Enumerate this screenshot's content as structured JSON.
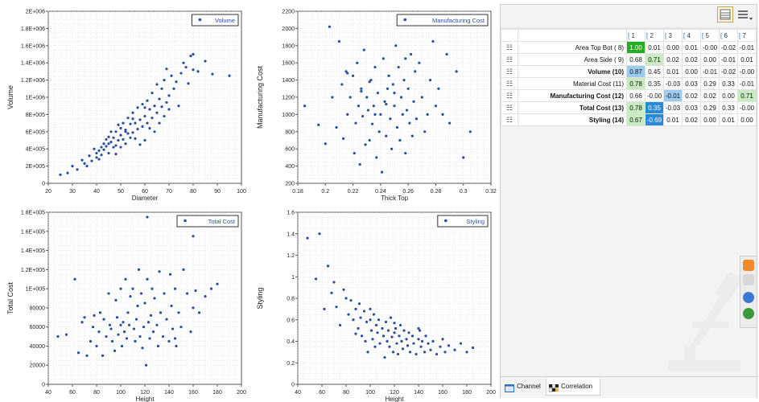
{
  "chart_data": [
    {
      "type": "scatter",
      "title": "",
      "xlabel": "Diameter",
      "ylabel": "Volume",
      "legend": "Volume",
      "legend_position": "top-right",
      "grid": true,
      "xlim": [
        20,
        100
      ],
      "ylim": [
        0,
        2000000
      ],
      "xticks": [
        "20",
        "30",
        "40",
        "50",
        "60",
        "70",
        "80",
        "90",
        "100"
      ],
      "yticks": [
        "0",
        "2E+005",
        "4E+005",
        "6E+005",
        "8E+005",
        "1E+006",
        "1.2E+006",
        "1.4E+006",
        "1.6E+006",
        "1.8E+006",
        "2E+006"
      ],
      "color": "#2a4d9e",
      "x": [
        25,
        28,
        30,
        32,
        34,
        35,
        36,
        37,
        38,
        39,
        40,
        40,
        41,
        41,
        42,
        42,
        43,
        43,
        44,
        44,
        45,
        45,
        45,
        46,
        46,
        47,
        47,
        48,
        48,
        49,
        49,
        50,
        50,
        50,
        51,
        51,
        52,
        52,
        53,
        53,
        54,
        54,
        55,
        55,
        56,
        56,
        57,
        57,
        58,
        58,
        59,
        59,
        60,
        60,
        61,
        61,
        62,
        62,
        63,
        63,
        64,
        64,
        65,
        65,
        66,
        66,
        67,
        67,
        68,
        68,
        69,
        69,
        70,
        70,
        71,
        72,
        73,
        74,
        75,
        76,
        77,
        78,
        79,
        80,
        80,
        82,
        85,
        88,
        95,
        60,
        55,
        52,
        48
      ],
      "y": [
        100000,
        120000,
        200000,
        160000,
        270000,
        230000,
        200000,
        320000,
        260000,
        400000,
        300000,
        350000,
        380000,
        280000,
        420000,
        330000,
        460000,
        390000,
        510000,
        430000,
        350000,
        460000,
        540000,
        480000,
        600000,
        420000,
        530000,
        440000,
        600000,
        500000,
        680000,
        420000,
        560000,
        640000,
        510000,
        700000,
        460000,
        620000,
        580000,
        760000,
        530000,
        690000,
        590000,
        820000,
        520000,
        700000,
        630000,
        880000,
        450000,
        740000,
        660000,
        920000,
        500000,
        780000,
        700000,
        960000,
        640000,
        860000,
        760000,
        1050000,
        600000,
        900000,
        820000,
        1150000,
        700000,
        980000,
        890000,
        1100000,
        780000,
        1200000,
        940000,
        1330000,
        860000,
        1020000,
        1250000,
        1100000,
        1180000,
        900000,
        1280000,
        1400000,
        1350000,
        1160000,
        1480000,
        1320000,
        1500000,
        1300000,
        1420000,
        1270000,
        1250000,
        880000,
        750000,
        600000,
        340000
      ]
    },
    {
      "type": "scatter",
      "title": "",
      "xlabel": "Thick Top",
      "ylabel": "Manufacturing Cost",
      "legend": "Manufacturing Cost",
      "legend_position": "top-right",
      "grid": true,
      "xlim": [
        0.18,
        0.32
      ],
      "ylim": [
        200,
        2200
      ],
      "xticks": [
        "0.18",
        "0.2",
        "0.22",
        "0.24",
        "0.26",
        "0.28",
        "0.3",
        "0.32"
      ],
      "yticks": [
        "200",
        "400",
        "600",
        "800",
        "1000",
        "1200",
        "1400",
        "1600",
        "1800",
        "2000",
        "2200"
      ],
      "color": "#2a4d9e",
      "x": [
        0.185,
        0.195,
        0.2,
        0.203,
        0.205,
        0.208,
        0.21,
        0.212,
        0.213,
        0.215,
        0.216,
        0.218,
        0.22,
        0.221,
        0.222,
        0.223,
        0.224,
        0.225,
        0.226,
        0.227,
        0.228,
        0.229,
        0.23,
        0.231,
        0.232,
        0.233,
        0.234,
        0.235,
        0.236,
        0.237,
        0.238,
        0.239,
        0.24,
        0.241,
        0.242,
        0.243,
        0.244,
        0.245,
        0.246,
        0.247,
        0.248,
        0.249,
        0.25,
        0.251,
        0.252,
        0.253,
        0.254,
        0.255,
        0.256,
        0.257,
        0.258,
        0.259,
        0.26,
        0.261,
        0.262,
        0.263,
        0.264,
        0.265,
        0.266,
        0.268,
        0.27,
        0.272,
        0.274,
        0.276,
        0.278,
        0.28,
        0.282,
        0.285,
        0.288,
        0.29,
        0.295,
        0.3,
        0.305,
        0.232,
        0.244,
        0.226,
        0.236,
        0.25,
        0.258,
        0.216
      ],
      "y": [
        1100,
        880,
        660,
        2020,
        1200,
        850,
        1850,
        1350,
        720,
        1500,
        1000,
        1200,
        1450,
        550,
        900,
        1600,
        1100,
        420,
        1300,
        980,
        1750,
        650,
        1200,
        1050,
        700,
        1400,
        890,
        1100,
        1550,
        500,
        1250,
        800,
        1000,
        330,
        1650,
        1150,
        750,
        1300,
        1450,
        950,
        600,
        1350,
        1100,
        1800,
        850,
        1550,
        700,
        1200,
        1000,
        1400,
        550,
        1050,
        1300,
        900,
        1700,
        750,
        1150,
        1500,
        950,
        1600,
        1200,
        800,
        1000,
        1400,
        1850,
        1100,
        1300,
        1000,
        1700,
        900,
        1500,
        500,
        800,
        1380,
        1120,
        1270,
        1000,
        1250,
        1650,
        1480
      ]
    },
    {
      "type": "scatter",
      "title": "",
      "xlabel": "Height",
      "ylabel": "Total Cost",
      "legend": "Total Cost",
      "legend_position": "top-right",
      "grid": true,
      "xlim": [
        40,
        200
      ],
      "ylim": [
        0,
        180000
      ],
      "xticks": [
        "40",
        "60",
        "80",
        "100",
        "120",
        "140",
        "160",
        "180",
        "200"
      ],
      "yticks": [
        "0",
        "20000",
        "40000",
        "60000",
        "80000",
        "1E+005",
        "1.2E+005",
        "1.4E+005",
        "1.6E+005",
        "1.8E+005"
      ],
      "color": "#2a4d9e",
      "x": [
        48,
        55,
        62,
        65,
        68,
        70,
        72,
        75,
        77,
        78,
        80,
        82,
        83,
        85,
        86,
        88,
        90,
        91,
        92,
        93,
        95,
        96,
        97,
        98,
        100,
        101,
        102,
        103,
        104,
        105,
        106,
        107,
        108,
        110,
        111,
        112,
        113,
        114,
        115,
        116,
        117,
        118,
        119,
        120,
        121,
        122,
        123,
        124,
        125,
        126,
        127,
        128,
        130,
        131,
        132,
        133,
        135,
        136,
        138,
        140,
        141,
        142,
        143,
        145,
        146,
        148,
        150,
        152,
        155,
        158,
        160,
        162,
        165,
        170,
        175,
        180,
        122,
        160,
        100,
        145
      ],
      "y": [
        50000,
        52000,
        110000,
        33000,
        65000,
        70000,
        30000,
        45000,
        60000,
        72000,
        40000,
        55000,
        75000,
        30000,
        68000,
        50000,
        95000,
        62000,
        58000,
        45000,
        35000,
        88000,
        70000,
        52000,
        100000,
        40000,
        65000,
        55000,
        110000,
        48000,
        75000,
        62000,
        92000,
        100000,
        58000,
        45000,
        68000,
        82000,
        120000,
        50000,
        95000,
        38000,
        60000,
        85000,
        20000,
        110000,
        65000,
        48000,
        72000,
        100000,
        55000,
        90000,
        62000,
        40000,
        118000,
        75000,
        50000,
        95000,
        68000,
        45000,
        115000,
        82000,
        58000,
        100000,
        40000,
        75000,
        60000,
        120000,
        95000,
        55000,
        80000,
        98000,
        75000,
        92000,
        100000,
        105000,
        175000,
        155000,
        62000,
        48000
      ]
    },
    {
      "type": "scatter",
      "title": "",
      "xlabel": "Height",
      "ylabel": "Styling",
      "legend": "Styling",
      "legend_position": "top-right",
      "grid": true,
      "xlim": [
        40,
        200
      ],
      "ylim": [
        0,
        1.6
      ],
      "xticks": [
        "40",
        "60",
        "80",
        "100",
        "120",
        "140",
        "160",
        "180",
        "200"
      ],
      "yticks": [
        "0",
        "0.2",
        "0.4",
        "0.6",
        "0.8",
        "1",
        "1.2",
        "1.4",
        "1.6"
      ],
      "color": "#2a4d9e",
      "x": [
        48,
        55,
        58,
        62,
        65,
        68,
        70,
        72,
        75,
        78,
        80,
        82,
        84,
        86,
        88,
        90,
        91,
        92,
        93,
        95,
        96,
        97,
        98,
        100,
        101,
        102,
        103,
        104,
        105,
        106,
        107,
        108,
        110,
        111,
        112,
        113,
        114,
        115,
        116,
        117,
        118,
        119,
        120,
        121,
        122,
        123,
        124,
        125,
        126,
        127,
        128,
        130,
        131,
        132,
        133,
        135,
        136,
        138,
        140,
        141,
        142,
        143,
        145,
        146,
        148,
        150,
        152,
        155,
        158,
        160,
        162,
        165,
        170,
        175,
        180,
        185,
        88,
        120,
        140,
        100
      ],
      "y": [
        1.36,
        0.98,
        1.4,
        0.7,
        1.1,
        0.85,
        0.95,
        0.72,
        0.55,
        0.88,
        0.8,
        0.65,
        0.78,
        0.6,
        0.7,
        0.52,
        0.75,
        0.62,
        0.45,
        0.68,
        0.4,
        0.58,
        0.3,
        0.6,
        0.5,
        0.42,
        0.65,
        0.35,
        0.55,
        0.48,
        0.6,
        0.38,
        0.52,
        0.45,
        0.25,
        0.58,
        0.4,
        0.5,
        0.35,
        0.62,
        0.44,
        0.3,
        0.48,
        0.52,
        0.38,
        0.28,
        0.45,
        0.55,
        0.4,
        0.33,
        0.5,
        0.42,
        0.36,
        0.48,
        0.3,
        0.45,
        0.38,
        0.28,
        0.42,
        0.5,
        0.35,
        0.4,
        0.3,
        0.45,
        0.38,
        0.32,
        0.4,
        0.28,
        0.35,
        0.42,
        0.3,
        0.36,
        0.32,
        0.38,
        0.3,
        0.34,
        0.47,
        0.57,
        0.52,
        0.7
      ]
    }
  ],
  "correlation": {
    "columns": [
      "1",
      "2",
      "3",
      "4",
      "5",
      "6",
      "7"
    ],
    "rows": [
      {
        "label": "Area Top Bot ( 8)",
        "bold": false,
        "values": [
          "1.00",
          "0.01",
          "0.00",
          "0.01",
          "-0.00",
          "-0.02",
          "-0.01"
        ]
      },
      {
        "label": "Area Side ( 9)",
        "bold": false,
        "values": [
          "0.68",
          "0.71",
          "0.02",
          "0.02",
          "0.00",
          "-0.01",
          "0.01"
        ]
      },
      {
        "label": "Volume (10)",
        "bold": true,
        "values": [
          "0.87",
          "0.45",
          "0.01",
          "0.00",
          "-0.01",
          "-0.02",
          "-0.00"
        ]
      },
      {
        "label": "Material Cost (11)",
        "bold": false,
        "values": [
          "0.78",
          "0.35",
          "-0.03",
          "0.03",
          "0.29",
          "0.33",
          "-0.01"
        ]
      },
      {
        "label": "Manufacturing Cost (12)",
        "bold": true,
        "values": [
          "0.66",
          "-0.00",
          "-0.01",
          "0.02",
          "0.02",
          "0.00",
          "0.71"
        ]
      },
      {
        "label": "Total Cost (13)",
        "bold": true,
        "values": [
          "0.78",
          "0.35",
          "-0.03",
          "0.03",
          "0.29",
          "0.33",
          "-0.00"
        ]
      },
      {
        "label": "Styling (14)",
        "bold": true,
        "values": [
          "0.67",
          "-0.69",
          "0.01",
          "0.02",
          "0.00",
          "0.01",
          "0.00"
        ]
      }
    ],
    "highlights": {
      "0-0": "hl-green",
      "1-1": "hl-lgreen",
      "2-0": "hl-lblue",
      "3-0": "hl-lgreen",
      "4-2": "hl-lblue",
      "4-6": "hl-lgreen",
      "5-0": "hl-lgreen",
      "5-1": "hl-blue",
      "6-0": "hl-lgreen",
      "6-1": "hl-blue"
    }
  },
  "tabs": {
    "channel": "Channel",
    "correlation": "Correlation"
  },
  "icons": {
    "row_icon": "scatter-chart-icon",
    "col_icon": "column-icon",
    "table_view": "table-view-icon",
    "menu": "menu-icon"
  }
}
